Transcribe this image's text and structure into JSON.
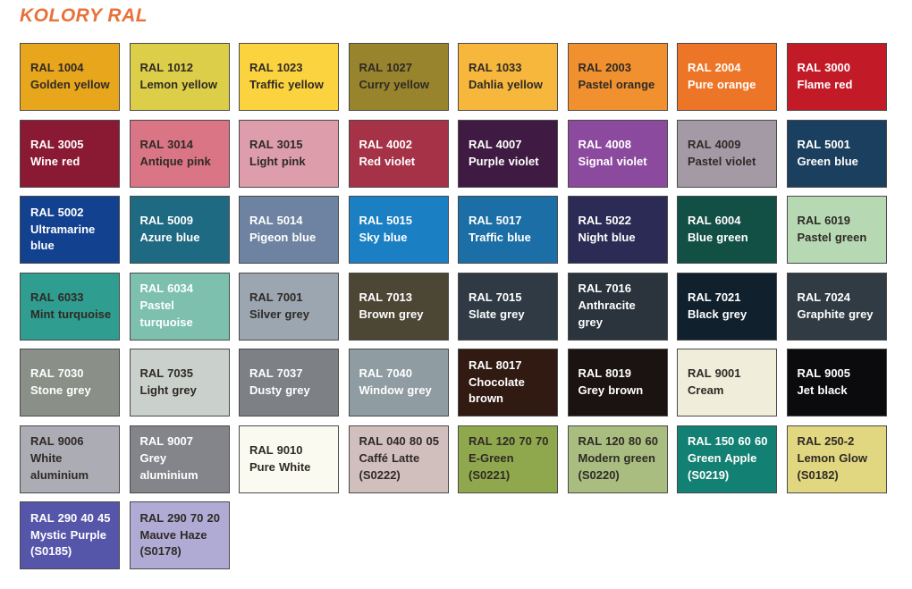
{
  "page": {
    "title": "KOLORY RAL",
    "title_color": "#E8713A",
    "background": "#FFFFFF",
    "swatch_border_color": "#4A4A4A"
  },
  "swatches": [
    {
      "code": "RAL 1004",
      "name": "Golden yellow",
      "bg": "#E8A61C",
      "fg": "#2F2A26"
    },
    {
      "code": "RAL 1012",
      "name": "Lemon yellow",
      "bg": "#DCCE49",
      "fg": "#2F2A26"
    },
    {
      "code": "RAL 1023",
      "name": "Traffic yellow",
      "bg": "#FBD33F",
      "fg": "#2F2A26"
    },
    {
      "code": "RAL 1027",
      "name": "Curry yellow",
      "bg": "#97842C",
      "fg": "#2F2A26"
    },
    {
      "code": "RAL 1033",
      "name": "Dahlia yellow",
      "bg": "#F6B73C",
      "fg": "#2F2A26"
    },
    {
      "code": "RAL 2003",
      "name": "Pastel orange",
      "bg": "#F1902F",
      "fg": "#2F2A26"
    },
    {
      "code": "RAL 2004",
      "name": "Pure orange",
      "bg": "#ED7528",
      "fg": "#FFFFFF"
    },
    {
      "code": "RAL 3000",
      "name": "Flame red",
      "bg": "#C31A28",
      "fg": "#FFFFFF"
    },
    {
      "code": "RAL 3005",
      "name": "Wine red",
      "bg": "#8A1A33",
      "fg": "#FFFFFF"
    },
    {
      "code": "RAL 3014",
      "name": "Antique pink",
      "bg": "#DA7586",
      "fg": "#2F2A26"
    },
    {
      "code": "RAL 3015",
      "name": "Light pink",
      "bg": "#DD9DAB",
      "fg": "#2F2A26"
    },
    {
      "code": "RAL 4002",
      "name": "Red violet",
      "bg": "#A53246",
      "fg": "#FFFFFF"
    },
    {
      "code": "RAL 4007",
      "name": "Purple violet",
      "bg": "#3F1A42",
      "fg": "#FFFFFF"
    },
    {
      "code": "RAL 4008",
      "name": "Signal violet",
      "bg": "#8C4A9E",
      "fg": "#FFFFFF"
    },
    {
      "code": "RAL 4009",
      "name": "Pastel violet",
      "bg": "#A49AA6",
      "fg": "#2F2A26"
    },
    {
      "code": "RAL 5001",
      "name": "Green blue",
      "bg": "#1B3F5E",
      "fg": "#FFFFFF"
    },
    {
      "code": "RAL 5002",
      "name": "Ultramarine blue",
      "bg": "#12418F",
      "fg": "#FFFFFF"
    },
    {
      "code": "RAL 5009",
      "name": "Azure blue",
      "bg": "#1E6A83",
      "fg": "#FFFFFF"
    },
    {
      "code": "RAL 5014",
      "name": "Pigeon blue",
      "bg": "#6D83A1",
      "fg": "#FFFFFF"
    },
    {
      "code": "RAL 5015",
      "name": "Sky blue",
      "bg": "#1A7FC3",
      "fg": "#FFFFFF"
    },
    {
      "code": "RAL 5017",
      "name": "Traffic blue",
      "bg": "#1C6FA6",
      "fg": "#FFFFFF"
    },
    {
      "code": "RAL 5022",
      "name": "Night blue",
      "bg": "#2B2B55",
      "fg": "#FFFFFF"
    },
    {
      "code": "RAL 6004",
      "name": "Blue green",
      "bg": "#124F45",
      "fg": "#FFFFFF"
    },
    {
      "code": "RAL 6019",
      "name": "Pastel green",
      "bg": "#B6D9B4",
      "fg": "#2F2A26"
    },
    {
      "code": "RAL 6033",
      "name": "Mint turquoise",
      "bg": "#2F9D8F",
      "fg": "#2F2A26"
    },
    {
      "code": "RAL 6034",
      "name": "Pastel turquoise",
      "bg": "#7CC0AD",
      "fg": "#FFFFFF"
    },
    {
      "code": "RAL 7001",
      "name": "Silver grey",
      "bg": "#9BA6B0",
      "fg": "#2F2A26"
    },
    {
      "code": "RAL 7013",
      "name": "Brown grey",
      "bg": "#4C4635",
      "fg": "#FFFFFF"
    },
    {
      "code": "RAL 7015",
      "name": "Slate grey",
      "bg": "#2F3A45",
      "fg": "#FFFFFF"
    },
    {
      "code": "RAL 7016",
      "name": "Anthracite grey",
      "bg": "#2B343D",
      "fg": "#FFFFFF"
    },
    {
      "code": "RAL 7021",
      "name": "Black grey",
      "bg": "#10202C",
      "fg": "#FFFFFF"
    },
    {
      "code": "RAL 7024",
      "name": "Graphite grey",
      "bg": "#303B43",
      "fg": "#FFFFFF"
    },
    {
      "code": "RAL 7030",
      "name": "Stone grey",
      "bg": "#8A9088",
      "fg": "#FFFFFF"
    },
    {
      "code": "RAL 7035",
      "name": "Light grey",
      "bg": "#CAD1CD",
      "fg": "#2F2A26"
    },
    {
      "code": "RAL 7037",
      "name": "Dusty grey",
      "bg": "#7D8185",
      "fg": "#FFFFFF"
    },
    {
      "code": "RAL 7040",
      "name": "Window grey",
      "bg": "#8F9CA1",
      "fg": "#FFFFFF"
    },
    {
      "code": "RAL 8017",
      "name": "Chocolate brown",
      "bg": "#301A12",
      "fg": "#FFFFFF"
    },
    {
      "code": "RAL 8019",
      "name": "Grey brown",
      "bg": "#1B1311",
      "fg": "#FFFFFF"
    },
    {
      "code": "RAL 9001",
      "name": "Cream",
      "bg": "#F0EDDA",
      "fg": "#2F2A26"
    },
    {
      "code": "RAL 9005",
      "name": "Jet black",
      "bg": "#0B0B0D",
      "fg": "#FFFFFF"
    },
    {
      "code": "RAL 9006",
      "name": "White aluminium",
      "bg": "#ACACB4",
      "fg": "#2F2A26"
    },
    {
      "code": "RAL 9007",
      "name": "Grey aluminium",
      "bg": "#84858B",
      "fg": "#FFFFFF"
    },
    {
      "code": "RAL 9010",
      "name": "Pure White",
      "bg": "#FAFAF0",
      "fg": "#2F2A26"
    },
    {
      "code": "RAL 040 80 05",
      "name": "Caffé Latte",
      "suffix": "(S0222)",
      "bg": "#D1BFBD",
      "fg": "#2F2A26"
    },
    {
      "code": "RAL 120 70 70",
      "name": "E-Green",
      "suffix": "(S0221)",
      "bg": "#90A84D",
      "fg": "#2F2A26"
    },
    {
      "code": "RAL 120 80 60",
      "name": "Modern green",
      "suffix": "(S0220)",
      "bg": "#A9BD80",
      "fg": "#2F2A26"
    },
    {
      "code": "RAL 150 60 60",
      "name": "Green Apple",
      "suffix": "(S0219)",
      "bg": "#128072",
      "fg": "#FFFFFF"
    },
    {
      "code": "RAL 250-2",
      "name": "Lemon Glow",
      "suffix": "(S0182)",
      "bg": "#E1D780",
      "fg": "#2F2A26"
    },
    {
      "code": "RAL 290 40 45",
      "name": "Mystic Purple",
      "suffix": "(S0185)",
      "bg": "#5556A9",
      "fg": "#FFFFFF"
    },
    {
      "code": "RAL 290 70 20",
      "name": "Mauve Haze",
      "suffix": "(S0178)",
      "bg": "#AFABD5",
      "fg": "#2F2A26"
    }
  ]
}
